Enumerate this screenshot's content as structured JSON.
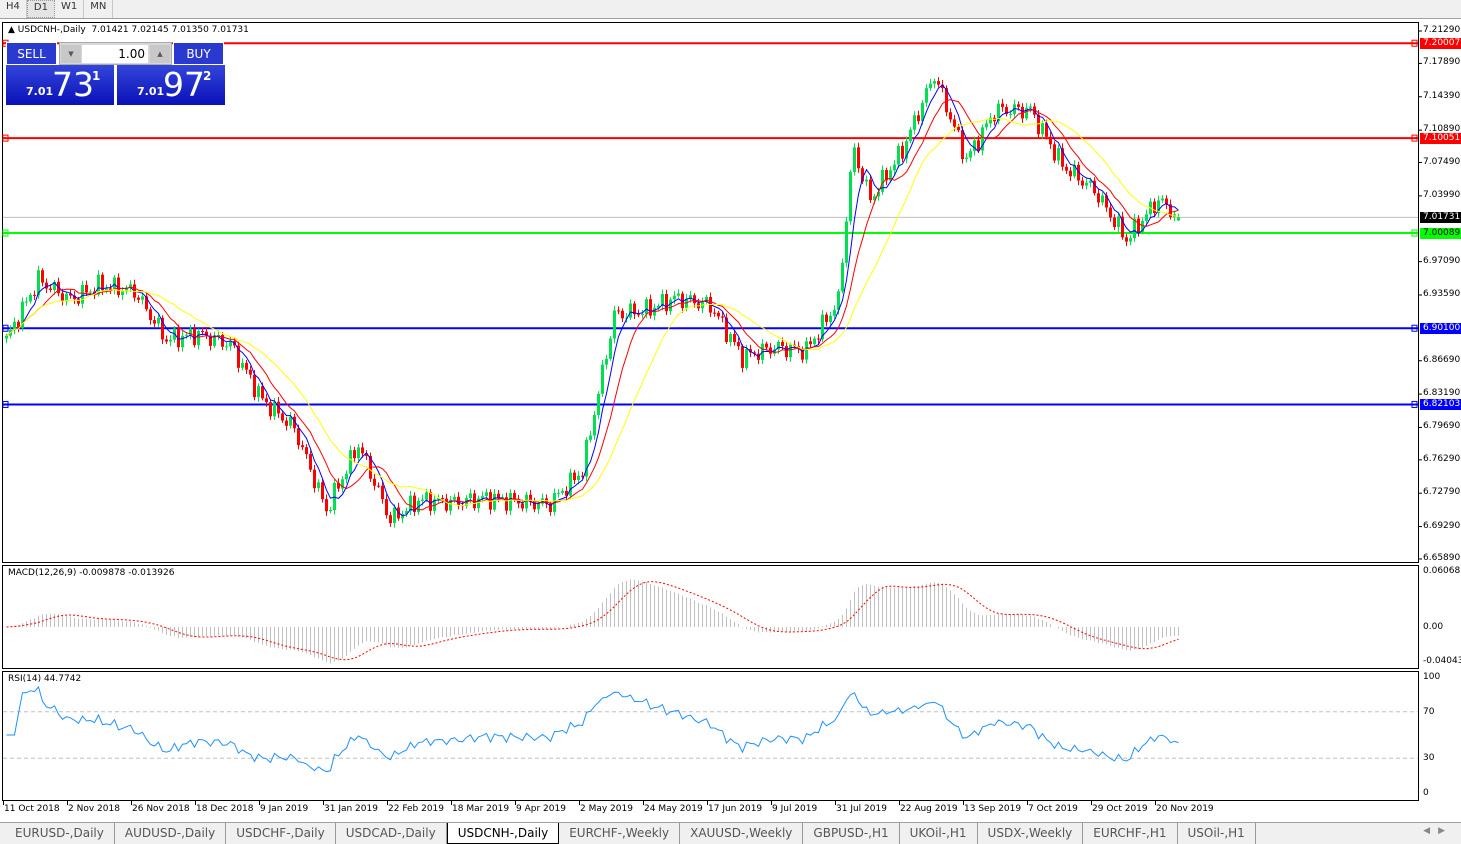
{
  "toolbar": {
    "timeframes": [
      "H4",
      "D1",
      "W1",
      "MN"
    ],
    "active": "D1"
  },
  "chart": {
    "header": "USDCNH-,Daily",
    "ohlc": "7.01421 7.02145 7.01350 7.01731",
    "symbol_icon": "triangle-up-icon"
  },
  "trade_panel": {
    "sell_label": "SELL",
    "buy_label": "BUY",
    "lot": "1.00",
    "sell_prefix": "7.01",
    "sell_big": "73",
    "sell_sup": "1",
    "buy_prefix": "7.01",
    "buy_big": "97",
    "buy_sup": "2"
  },
  "price_axis": [
    "7.21290",
    "7.17890",
    "7.14390",
    "7.10890",
    "7.07490",
    "7.03990",
    "6.97090",
    "6.93590",
    "6.86690",
    "6.83190",
    "6.79690",
    "6.76290",
    "6.72790",
    "6.69290",
    "6.65890"
  ],
  "levels": [
    {
      "value": "7.20007",
      "color": "#ff0000"
    },
    {
      "value": "7.10051",
      "color": "#ff0000"
    },
    {
      "value": "7.00089",
      "color": "#00ff00"
    },
    {
      "value": "6.90100",
      "color": "#0000ff"
    },
    {
      "value": "6.82103",
      "color": "#0000ff"
    }
  ],
  "current_price": {
    "value": "7.01731",
    "color": "#000000"
  },
  "macd": {
    "title": "MACD(12,26,9) -0.009878 -0.013926",
    "axis": [
      "0.060687",
      "0.00",
      "-0.040432"
    ]
  },
  "rsi": {
    "title": "RSI(14) 44.7742",
    "axis": [
      "100",
      "70",
      "30",
      "0"
    ],
    "levels": [
      70,
      30
    ]
  },
  "time_axis": [
    "11 Oct 2018",
    "2 Nov 2018",
    "26 Nov 2018",
    "18 Dec 2018",
    "9 Jan 2019",
    "31 Jan 2019",
    "22 Feb 2019",
    "18 Mar 2019",
    "9 Apr 2019",
    "2 May 2019",
    "24 May 2019",
    "17 Jun 2019",
    "9 Jul 2019",
    "31 Jul 2019",
    "22 Aug 2019",
    "13 Sep 2019",
    "7 Oct 2019",
    "29 Oct 2019",
    "20 Nov 2019"
  ],
  "tabs": [
    "EURUSD-,Daily",
    "AUDUSD-,Daily",
    "USDCHF-,Daily",
    "USDCAD-,Daily",
    "USDCNH-,Daily",
    "EURCHF-,Weekly",
    "XAUUSD-,Weekly",
    "GBPUSD-,H1",
    "UKOil-,H1",
    "USDX-,Weekly",
    "EURCHF-,H1",
    "USOil-,H1"
  ],
  "active_tab": "USDCNH-,Daily",
  "colors": {
    "bull": "#00e050",
    "bear": "#ff0000",
    "ma_fast": "#0000ff",
    "ma_mid": "#ff0000",
    "ma_slow": "#ffff00",
    "rsi": "#1e90ff",
    "macd_hist": "#c0c0c0",
    "macd_signal": "#ff0000"
  },
  "chart_data": {
    "type": "candlestick",
    "symbol": "USDCNH",
    "timeframe": "Daily",
    "ylim": [
      6.6589,
      7.2129
    ],
    "approx_close": [
      [
        "2018-10-11",
        6.889
      ],
      [
        "2018-10-22",
        6.952
      ],
      [
        "2018-11-02",
        6.931
      ],
      [
        "2018-11-13",
        6.946
      ],
      [
        "2018-11-26",
        6.94
      ],
      [
        "2018-12-07",
        6.889
      ],
      [
        "2018-12-18",
        6.895
      ],
      [
        "2018-12-29",
        6.884
      ],
      [
        "2019-01-09",
        6.826
      ],
      [
        "2019-01-20",
        6.796
      ],
      [
        "2019-01-31",
        6.71
      ],
      [
        "2019-02-11",
        6.779
      ],
      [
        "2019-02-22",
        6.7
      ],
      [
        "2019-03-05",
        6.721
      ],
      [
        "2019-03-18",
        6.718
      ],
      [
        "2019-03-29",
        6.723
      ],
      [
        "2019-04-09",
        6.719
      ],
      [
        "2019-04-20",
        6.716
      ],
      [
        "2019-05-02",
        6.752
      ],
      [
        "2019-05-13",
        6.915
      ],
      [
        "2019-05-24",
        6.92
      ],
      [
        "2019-06-04",
        6.933
      ],
      [
        "2019-06-17",
        6.925
      ],
      [
        "2019-06-28",
        6.871
      ],
      [
        "2019-07-09",
        6.881
      ],
      [
        "2019-07-20",
        6.878
      ],
      [
        "2019-07-31",
        6.93
      ],
      [
        "2019-08-05",
        7.09
      ],
      [
        "2019-08-11",
        7.036
      ],
      [
        "2019-08-22",
        7.088
      ],
      [
        "2019-09-02",
        7.167
      ],
      [
        "2019-09-13",
        7.078
      ],
      [
        "2019-09-24",
        7.13
      ],
      [
        "2019-10-07",
        7.13
      ],
      [
        "2019-10-18",
        7.072
      ],
      [
        "2019-10-29",
        7.046
      ],
      [
        "2019-11-09",
        6.994
      ],
      [
        "2019-11-20",
        7.036
      ],
      [
        "2019-11-27",
        7.01731
      ]
    ],
    "last_bar": {
      "open": 7.01421,
      "high": 7.02145,
      "low": 7.0135,
      "close": 7.01731
    },
    "indicators": [
      "MA fast",
      "MA mid",
      "MA slow",
      "MACD(12,26,9)",
      "RSI(14)"
    ]
  }
}
